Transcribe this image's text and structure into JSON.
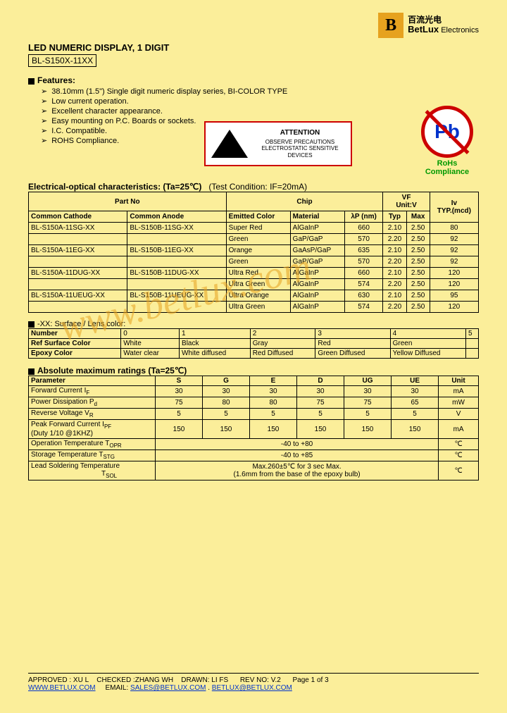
{
  "brand": {
    "cn": "百流光电",
    "en_bold": "BetLux",
    "en_rest": " Electronics",
    "logo_letter": "B",
    "logo_bg": "#e6a21f"
  },
  "title": "LED NUMERIC DISPLAY, 1 DIGIT",
  "part_no": "BL-S150X-11XX",
  "features_label": "Features:",
  "features": [
    "38.10mm (1.5\") Single digit numeric display series, BI-COLOR TYPE",
    "Low current operation.",
    "Excellent character appearance.",
    "Easy mounting on P.C. Boards or sockets.",
    "I.C. Compatible.",
    "ROHS Compliance."
  ],
  "esd": {
    "title": "ATTENTION",
    "body": "OBSERVE PRECAUTIONS ELECTROSTATIC SENSITIVE DEVICES"
  },
  "pb": {
    "symbol": "Pb",
    "label": "RoHs Compliance"
  },
  "elec_header": {
    "bold": "Electrical-optical characteristics: (Ta=25℃)",
    "cond": "(Test Condition: IF=20mA)"
  },
  "t1": {
    "h_partno": "Part No",
    "h_chip": "Chip",
    "h_vf": "VF",
    "h_vf_unit": "Unit:V",
    "h_iv": "Iv",
    "h_iv_unit": "TYP.(mcd)",
    "h_cc": "Common Cathode",
    "h_ca": "Common Anode",
    "h_color": "Emitted Color",
    "h_mat": "Material",
    "h_wl": "λP (nm)",
    "h_typ": "Typ",
    "h_max": "Max",
    "rows": [
      {
        "cc": "BL-S150A-11SG-XX",
        "ca": "BL-S150B-11SG-XX",
        "color": "Super Red",
        "mat": "AlGaInP",
        "wl": "660",
        "typ": "2.10",
        "max": "2.50",
        "iv": "80"
      },
      {
        "cc": "",
        "ca": "",
        "color": "Green",
        "mat": "GaP/GaP",
        "wl": "570",
        "typ": "2.20",
        "max": "2.50",
        "iv": "92"
      },
      {
        "cc": "BL-S150A-11EG-XX",
        "ca": "BL-S150B-11EG-XX",
        "color": "Orange",
        "mat": "GaAsP/GaP",
        "wl": "635",
        "typ": "2.10",
        "max": "2.50",
        "iv": "92"
      },
      {
        "cc": "",
        "ca": "",
        "color": "Green",
        "mat": "GaP/GaP",
        "wl": "570",
        "typ": "2.20",
        "max": "2.50",
        "iv": "92"
      },
      {
        "cc": "BL-S150A-11DUG-XX",
        "ca": "BL-S150B-11DUG-XX",
        "color": "Ultra Red",
        "mat": "AlGaInP",
        "wl": "660",
        "typ": "2.10",
        "max": "2.50",
        "iv": "120"
      },
      {
        "cc": "",
        "ca": "",
        "color": "Ultra Green",
        "mat": "AlGaInP",
        "wl": "574",
        "typ": "2.20",
        "max": "2.50",
        "iv": "120"
      },
      {
        "cc": "BL-S150A-11UEUG-XX",
        "ca": "BL-S150B-11UEUG-XX",
        "color": "Ultra Orange",
        "mat": "AlGaInP",
        "wl": "630",
        "typ": "2.10",
        "max": "2.50",
        "iv": "95"
      },
      {
        "cc": "",
        "ca": "",
        "color": "Ultra Green",
        "mat": "AlGaInP",
        "wl": "574",
        "typ": "2.20",
        "max": "2.50",
        "iv": "120"
      }
    ]
  },
  "lens_label": "-XX: Surface / Lens color:",
  "t2": {
    "h_num": "Number",
    "h_ref": "Ref Surface Color",
    "h_epoxy": "Epoxy Color",
    "cols": [
      "0",
      "1",
      "2",
      "3",
      "4",
      "5"
    ],
    "ref": [
      "White",
      "Black",
      "Gray",
      "Red",
      "Green",
      ""
    ],
    "epoxy": [
      "Water clear",
      "White diffused",
      "Red Diffused",
      "Green Diffused",
      "Yellow Diffused",
      ""
    ]
  },
  "abs_label": "Absolute maximum ratings (Ta=25℃)",
  "t3": {
    "h_param": "Parameter",
    "cols": [
      "S",
      "G",
      "E",
      "D",
      "UG",
      "UE"
    ],
    "h_unit": "Unit",
    "rows": [
      {
        "p": "Forward Current   I",
        "sub": "F",
        "v": [
          "30",
          "30",
          "30",
          "30",
          "30",
          "30"
        ],
        "u": "mA"
      },
      {
        "p": "Power Dissipation P",
        "sub": "d",
        "v": [
          "75",
          "80",
          "80",
          "75",
          "75",
          "65"
        ],
        "u": "mW"
      },
      {
        "p": "Reverse Voltage V",
        "sub": "R",
        "v": [
          "5",
          "5",
          "5",
          "5",
          "5",
          "5"
        ],
        "u": "V"
      },
      {
        "p": "Peak Forward Current I",
        "sub": "PF",
        "p2": "(Duty 1/10 @1KHZ)",
        "v": [
          "150",
          "150",
          "150",
          "150",
          "150",
          "150"
        ],
        "u": "mA"
      },
      {
        "p": "Operation Temperature T",
        "sub": "OPR",
        "span": "-40 to +80",
        "u": "℃"
      },
      {
        "p": "Storage Temperature T",
        "sub": "STG",
        "span": "-40 to +85",
        "u": "℃"
      },
      {
        "p": "Lead Soldering Temperature",
        "sub2": "T",
        "sub2s": "SOL",
        "span": "Max.260±5℃  for 3 sec Max.\n(1.6mm from the base of the epoxy bulb)",
        "u": "℃"
      }
    ]
  },
  "footer": {
    "line1_a": "APPROVED : XU L",
    "line1_b": "CHECKED :ZHANG WH",
    "line1_c": "DRAWN:  LI FS",
    "line1_d": "REV NO: V.2",
    "line1_e": "Page 1 of 3",
    "url": "WWW.BETLUX.COM",
    "email_l": "EMAIL:",
    "email1": "SALES@BETLUX.COM",
    "sep": " . ",
    "email2": "BETLUX@BETLUX.COM"
  },
  "watermark": "www.betlux.com"
}
